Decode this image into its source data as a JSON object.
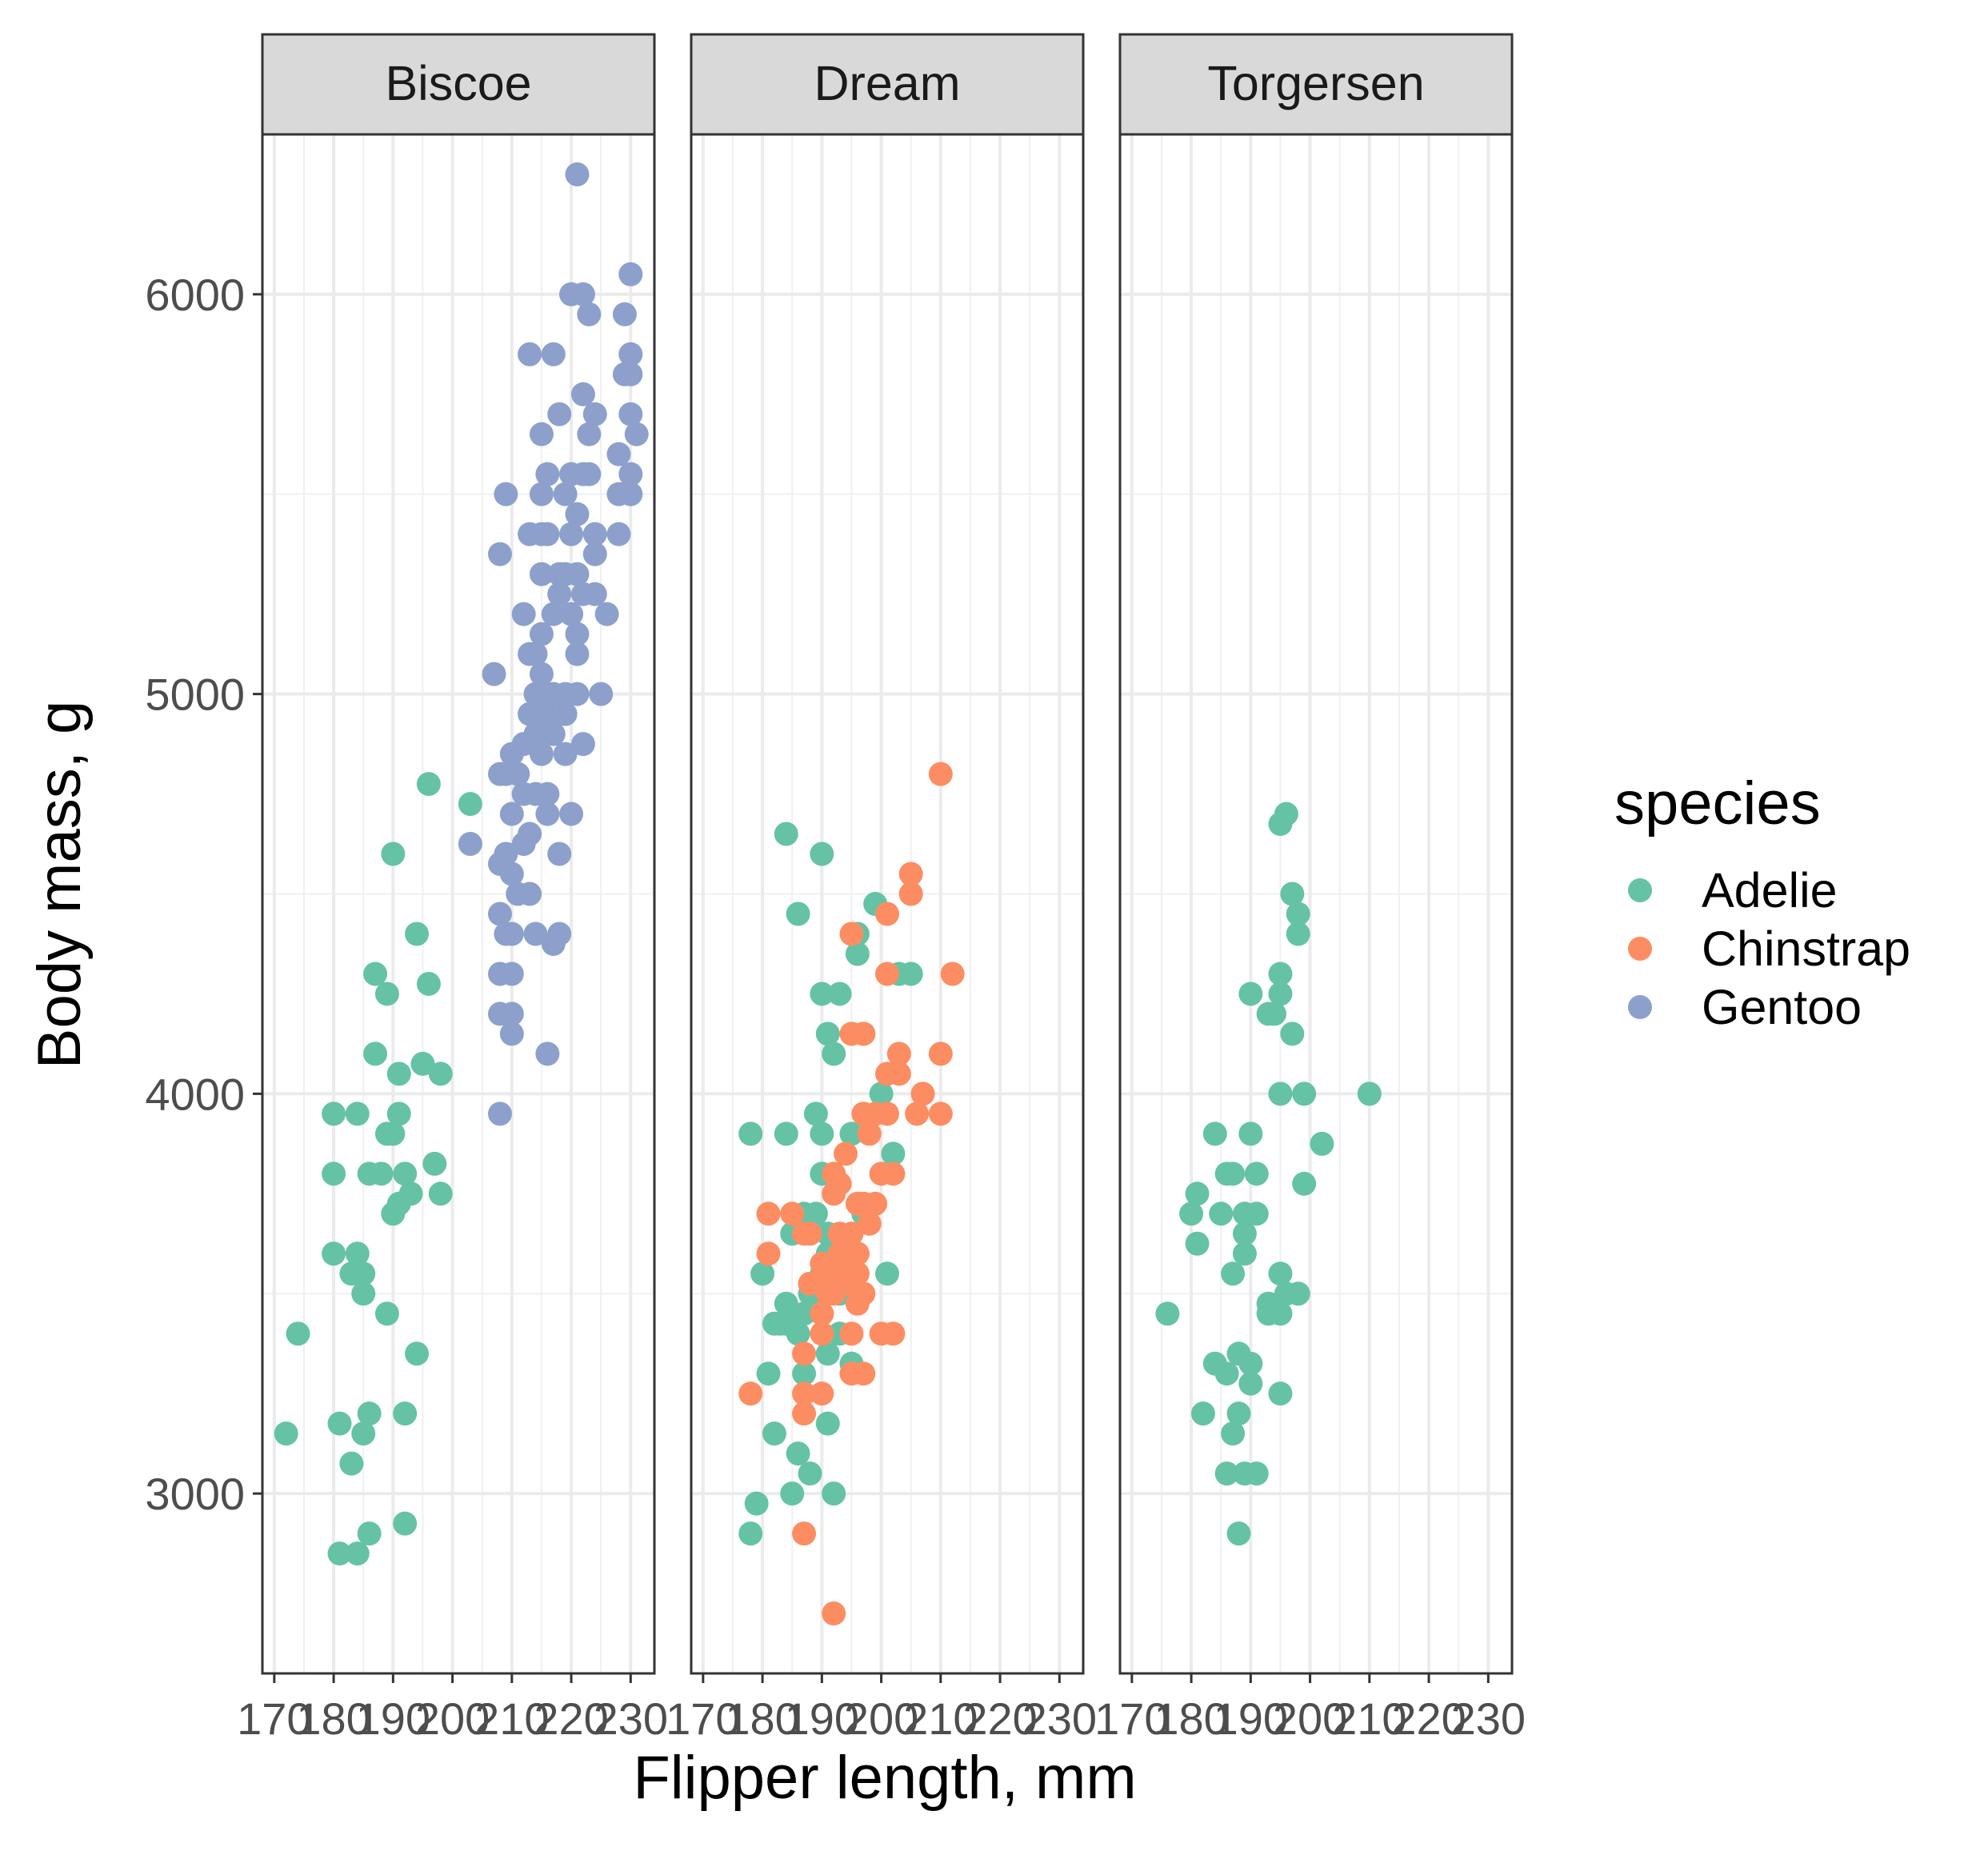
{
  "chart_data": {
    "type": "scatter",
    "title": "",
    "xlabel": "Flipper length, mm",
    "ylabel": "Body mass, g",
    "xlim": [
      168,
      234
    ],
    "ylim": [
      2550,
      6400
    ],
    "x_ticks": [
      170,
      180,
      190,
      200,
      210,
      220,
      230
    ],
    "x_tick_labels": [
      "170",
      "180",
      "190",
      "200",
      "210",
      "220",
      "230"
    ],
    "y_ticks": [
      3000,
      4000,
      5000,
      6000
    ],
    "y_tick_labels": [
      "3000",
      "4000",
      "5000",
      "6000"
    ],
    "grid": true,
    "facet_by": "island",
    "facets": [
      "Biscoe",
      "Dream",
      "Torgersen"
    ],
    "legend": {
      "title": "species",
      "placement": "right",
      "entries": [
        {
          "name": "Adelie",
          "color": "#66c2a5"
        },
        {
          "name": "Chinstrap",
          "color": "#fc8d62"
        },
        {
          "name": "Gentoo",
          "color": "#8da0cb"
        }
      ]
    },
    "points": {
      "Biscoe": {
        "Adelie": [
          [
            172,
            3150
          ],
          [
            174,
            3400
          ],
          [
            180,
            3950
          ],
          [
            180,
            3800
          ],
          [
            180,
            3600
          ],
          [
            181,
            3175
          ],
          [
            181,
            2850
          ],
          [
            183,
            3075
          ],
          [
            183,
            3550
          ],
          [
            184,
            3950
          ],
          [
            184,
            3600
          ],
          [
            184,
            2850
          ],
          [
            185,
            3550
          ],
          [
            185,
            3500
          ],
          [
            185,
            3150
          ],
          [
            186,
            3800
          ],
          [
            186,
            3200
          ],
          [
            186,
            2900
          ],
          [
            187,
            4300
          ],
          [
            187,
            4100
          ],
          [
            188,
            3800
          ],
          [
            189,
            3450
          ],
          [
            189,
            4250
          ],
          [
            189,
            3900
          ],
          [
            190,
            3900
          ],
          [
            190,
            3700
          ],
          [
            191,
            3725
          ],
          [
            191,
            4050
          ],
          [
            191,
            3950
          ],
          [
            192,
            3800
          ],
          [
            192,
            2925
          ],
          [
            192,
            3200
          ],
          [
            193,
            3750
          ],
          [
            194,
            4400
          ],
          [
            194,
            3350
          ],
          [
            195,
            4075
          ],
          [
            196,
            4275
          ],
          [
            196,
            4775
          ],
          [
            197,
            3825
          ],
          [
            198,
            3750
          ],
          [
            198,
            4050
          ],
          [
            190,
            4600
          ],
          [
            203,
            4725
          ]
        ],
        "Gentoo": [
          [
            203,
            4625
          ],
          [
            207,
            5050
          ],
          [
            208,
            4575
          ],
          [
            208,
            4450
          ],
          [
            208,
            4300
          ],
          [
            208,
            4200
          ],
          [
            208,
            5350
          ],
          [
            208,
            3950
          ],
          [
            209,
            4400
          ],
          [
            209,
            4800
          ],
          [
            209,
            5500
          ],
          [
            209,
            4600
          ],
          [
            210,
            4550
          ],
          [
            210,
            4850
          ],
          [
            210,
            4700
          ],
          [
            210,
            4400
          ],
          [
            210,
            4300
          ],
          [
            210,
            4200
          ],
          [
            210,
            4150
          ],
          [
            211,
            4500
          ],
          [
            211,
            4800
          ],
          [
            212,
            4875
          ],
          [
            212,
            4750
          ],
          [
            212,
            4625
          ],
          [
            212,
            5200
          ],
          [
            213,
            5850
          ],
          [
            213,
            5100
          ],
          [
            213,
            4650
          ],
          [
            213,
            4950
          ],
          [
            213,
            5400
          ],
          [
            214,
            4400
          ],
          [
            214,
            4750
          ],
          [
            214,
            4900
          ],
          [
            215,
            5400
          ],
          [
            215,
            5650
          ],
          [
            215,
            5500
          ],
          [
            215,
            5300
          ],
          [
            215,
            5150
          ],
          [
            215,
            4950
          ],
          [
            215,
            5000
          ],
          [
            215,
            4850
          ],
          [
            215,
            5050
          ],
          [
            216,
            5550
          ],
          [
            216,
            4750
          ],
          [
            216,
            4700
          ],
          [
            216,
            4950
          ],
          [
            216,
            4100
          ],
          [
            217,
            5850
          ],
          [
            217,
            4375
          ],
          [
            217,
            5200
          ],
          [
            217,
            5000
          ],
          [
            217,
            4900
          ],
          [
            218,
            5700
          ],
          [
            218,
            4600
          ],
          [
            218,
            5250
          ],
          [
            218,
            5300
          ],
          [
            219,
            5500
          ],
          [
            219,
            4850
          ],
          [
            219,
            5000
          ],
          [
            219,
            4950
          ],
          [
            219,
            5300
          ],
          [
            220,
            5400
          ],
          [
            220,
            5550
          ],
          [
            220,
            4700
          ],
          [
            220,
            5200
          ],
          [
            220,
            6000
          ],
          [
            221,
            5450
          ],
          [
            221,
            6300
          ],
          [
            221,
            5100
          ],
          [
            221,
            5300
          ],
          [
            221,
            5150
          ],
          [
            221,
            5000
          ],
          [
            222,
            5750
          ],
          [
            222,
            5550
          ],
          [
            222,
            6000
          ],
          [
            222,
            4875
          ],
          [
            222,
            5250
          ],
          [
            223,
            5950
          ],
          [
            223,
            5550
          ],
          [
            223,
            5650
          ],
          [
            224,
            5350
          ],
          [
            224,
            5400
          ],
          [
            224,
            5700
          ],
          [
            224,
            5250
          ],
          [
            225,
            5000
          ],
          [
            226,
            5200
          ],
          [
            228,
            5400
          ],
          [
            228,
            5500
          ],
          [
            228,
            5600
          ],
          [
            229,
            5950
          ],
          [
            229,
            5800
          ],
          [
            230,
            5700
          ],
          [
            230,
            5800
          ],
          [
            230,
            6050
          ],
          [
            230,
            5550
          ],
          [
            230,
            5850
          ],
          [
            230,
            5500
          ],
          [
            231,
            5650
          ],
          [
            216,
            5400
          ],
          [
            214,
            5100
          ],
          [
            213,
            4500
          ],
          [
            218,
            4400
          ],
          [
            208,
            4800
          ],
          [
            214,
            5000
          ]
        ]
      },
      "Dream": {
        "Adelie": [
          [
            178,
            3900
          ],
          [
            178,
            2900
          ],
          [
            179,
            2975
          ],
          [
            180,
            3550
          ],
          [
            181,
            3300
          ],
          [
            182,
            3150
          ],
          [
            182,
            3425
          ],
          [
            183,
            3425
          ],
          [
            184,
            4650
          ],
          [
            184,
            3900
          ],
          [
            184,
            3475
          ],
          [
            184,
            3425
          ],
          [
            185,
            3650
          ],
          [
            185,
            3000
          ],
          [
            186,
            4450
          ],
          [
            186,
            3100
          ],
          [
            186,
            3400
          ],
          [
            187,
            3300
          ],
          [
            187,
            3450
          ],
          [
            187,
            3700
          ],
          [
            188,
            3050
          ],
          [
            188,
            3500
          ],
          [
            189,
            3950
          ],
          [
            189,
            3700
          ],
          [
            190,
            4600
          ],
          [
            190,
            4250
          ],
          [
            190,
            3900
          ],
          [
            190,
            3800
          ],
          [
            190,
            3450
          ],
          [
            190,
            3550
          ],
          [
            191,
            4150
          ],
          [
            191,
            3350
          ],
          [
            191,
            3175
          ],
          [
            191,
            3650
          ],
          [
            191,
            3600
          ],
          [
            192,
            4100
          ],
          [
            192,
            3000
          ],
          [
            193,
            4250
          ],
          [
            193,
            3500
          ],
          [
            193,
            3400
          ],
          [
            195,
            3900
          ],
          [
            195,
            3325
          ],
          [
            196,
            4400
          ],
          [
            196,
            4350
          ],
          [
            196,
            3550
          ],
          [
            197,
            3700
          ],
          [
            197,
            4150
          ],
          [
            199,
            4475
          ],
          [
            200,
            4000
          ],
          [
            201,
            3550
          ],
          [
            203,
            4300
          ],
          [
            205,
            4300
          ],
          [
            202,
            3850
          ]
        ],
        "Chinstrap": [
          [
            178,
            3250
          ],
          [
            181,
            3700
          ],
          [
            181,
            3600
          ],
          [
            185,
            3700
          ],
          [
            187,
            3650
          ],
          [
            187,
            3350
          ],
          [
            187,
            3250
          ],
          [
            187,
            3200
          ],
          [
            187,
            2900
          ],
          [
            188,
            3525
          ],
          [
            188,
            3650
          ],
          [
            190,
            3450
          ],
          [
            190,
            3400
          ],
          [
            190,
            3250
          ],
          [
            190,
            3575
          ],
          [
            191,
            3500
          ],
          [
            192,
            3800
          ],
          [
            192,
            3750
          ],
          [
            192,
            3500
          ],
          [
            192,
            2700
          ],
          [
            193,
            3600
          ],
          [
            193,
            3775
          ],
          [
            194,
            3850
          ],
          [
            194,
            3525
          ],
          [
            195,
            3400
          ],
          [
            195,
            3650
          ],
          [
            195,
            3300
          ],
          [
            195,
            4400
          ],
          [
            195,
            4150
          ],
          [
            196,
            3550
          ],
          [
            196,
            3600
          ],
          [
            196,
            3725
          ],
          [
            196,
            3475
          ],
          [
            197,
            3300
          ],
          [
            197,
            3725
          ],
          [
            197,
            4150
          ],
          [
            197,
            3950
          ],
          [
            198,
            3675
          ],
          [
            198,
            3900
          ],
          [
            199,
            3950
          ],
          [
            200,
            3400
          ],
          [
            200,
            3800
          ],
          [
            201,
            4300
          ],
          [
            201,
            4450
          ],
          [
            201,
            4050
          ],
          [
            201,
            3950
          ],
          [
            202,
            3400
          ],
          [
            202,
            3800
          ],
          [
            203,
            4100
          ],
          [
            203,
            4050
          ],
          [
            205,
            4550
          ],
          [
            205,
            4500
          ],
          [
            206,
            3950
          ],
          [
            207,
            4000
          ],
          [
            210,
            4800
          ],
          [
            210,
            4100
          ],
          [
            210,
            3950
          ],
          [
            212,
            4300
          ],
          [
            193,
            3650
          ],
          [
            197,
            3500
          ],
          [
            199,
            3725
          ],
          [
            191,
            3550
          ],
          [
            194,
            3575
          ],
          [
            196,
            3600
          ]
        ]
      },
      "Torgersen": [
        [
          176,
          3450
        ],
        [
          180,
          3700
        ],
        [
          181,
          3625
        ],
        [
          181,
          3750
        ],
        [
          182,
          3200
        ],
        [
          184,
          3900
        ],
        [
          184,
          3325
        ],
        [
          185,
          3700
        ],
        [
          186,
          3800
        ],
        [
          186,
          3300
        ],
        [
          186,
          3050
        ],
        [
          187,
          3550
        ],
        [
          187,
          3800
        ],
        [
          187,
          3150
        ],
        [
          188,
          2900
        ],
        [
          188,
          3200
        ],
        [
          188,
          3350
        ],
        [
          189,
          3700
        ],
        [
          189,
          3600
        ],
        [
          189,
          3650
        ],
        [
          189,
          3050
        ],
        [
          190,
          4250
        ],
        [
          190,
          3900
        ],
        [
          190,
          3325
        ],
        [
          190,
          3275
        ],
        [
          191,
          3800
        ],
        [
          191,
          3700
        ],
        [
          191,
          3050
        ],
        [
          193,
          4200
        ],
        [
          193,
          3450
        ],
        [
          193,
          3475
        ],
        [
          194,
          4200
        ],
        [
          195,
          4000
        ],
        [
          195,
          4300
        ],
        [
          195,
          4250
        ],
        [
          195,
          4675
        ],
        [
          195,
          3550
        ],
        [
          195,
          3450
        ],
        [
          195,
          3250
        ],
        [
          196,
          4700
        ],
        [
          196,
          3500
        ],
        [
          197,
          4150
        ],
        [
          197,
          4500
        ],
        [
          198,
          4450
        ],
        [
          198,
          4400
        ],
        [
          198,
          3500
        ],
        [
          199,
          4000
        ],
        [
          199,
          3775
        ],
        [
          202,
          3875
        ],
        [
          210,
          4000
        ]
      ]
    }
  }
}
